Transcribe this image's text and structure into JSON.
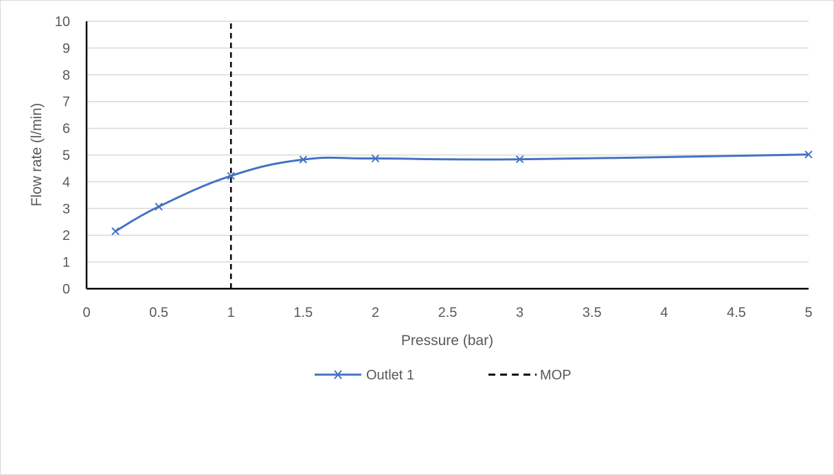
{
  "chart_data": {
    "type": "line",
    "title": "",
    "xlabel": "Pressure (bar)",
    "ylabel": "Flow rate (l/min)",
    "xlim": [
      0,
      5
    ],
    "ylim": [
      0,
      10
    ],
    "x_ticks": [
      "0",
      "0.5",
      "1",
      "1.5",
      "2",
      "2.5",
      "3",
      "3.5",
      "4",
      "4.5",
      "5"
    ],
    "y_ticks": [
      "0",
      "1",
      "2",
      "3",
      "4",
      "5",
      "6",
      "7",
      "8",
      "9",
      "10"
    ],
    "grid": "horizontal",
    "legend_position": "bottom",
    "series": [
      {
        "name": "Outlet 1",
        "style": "smooth line with x markers",
        "color": "#4472c4",
        "x": [
          0.2,
          0.5,
          1,
          1.5,
          2,
          3,
          5
        ],
        "y": [
          2.15,
          3.07,
          4.22,
          4.83,
          4.87,
          4.84,
          5.02
        ]
      },
      {
        "name": "MOP",
        "style": "dashed vertical line",
        "color": "#000000",
        "x": [
          1,
          1
        ],
        "y": [
          0,
          10
        ]
      }
    ]
  }
}
